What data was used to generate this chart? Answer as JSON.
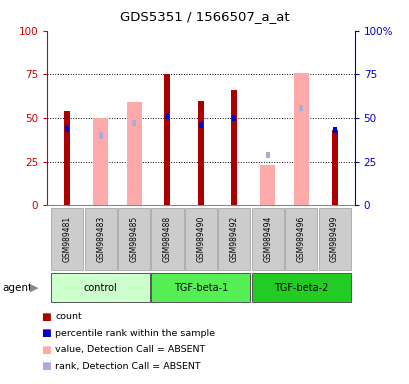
{
  "title": "GDS5351 / 1566507_a_at",
  "samples": [
    "GSM989481",
    "GSM989483",
    "GSM989485",
    "GSM989488",
    "GSM989490",
    "GSM989492",
    "GSM989494",
    "GSM989496",
    "GSM989499"
  ],
  "groups": [
    {
      "label": "control",
      "samples": [
        0,
        1,
        2
      ]
    },
    {
      "label": "TGF-beta-1",
      "samples": [
        3,
        4,
        5
      ]
    },
    {
      "label": "TGF-beta-2",
      "samples": [
        6,
        7,
        8
      ]
    }
  ],
  "group_colors": [
    "#ccffcc",
    "#55ee55",
    "#22cc22"
  ],
  "count_values": [
    54,
    null,
    null,
    75,
    60,
    66,
    null,
    null,
    43
  ],
  "rank_values": [
    44,
    null,
    null,
    51,
    46,
    50,
    null,
    null,
    43
  ],
  "absent_value_values": [
    null,
    50,
    59,
    null,
    null,
    null,
    23,
    76,
    null
  ],
  "absent_rank_values": [
    null,
    40,
    47,
    null,
    null,
    null,
    29,
    56,
    null
  ],
  "count_color": "#aa0000",
  "rank_color": "#0000cc",
  "absent_value_color": "#ffaaaa",
  "absent_rank_color": "#aaaadd",
  "ylim": [
    0,
    100
  ],
  "yticks": [
    0,
    25,
    50,
    75,
    100
  ],
  "tick_label_color_left": "#cc0000",
  "tick_label_color_right": "#0000cc"
}
